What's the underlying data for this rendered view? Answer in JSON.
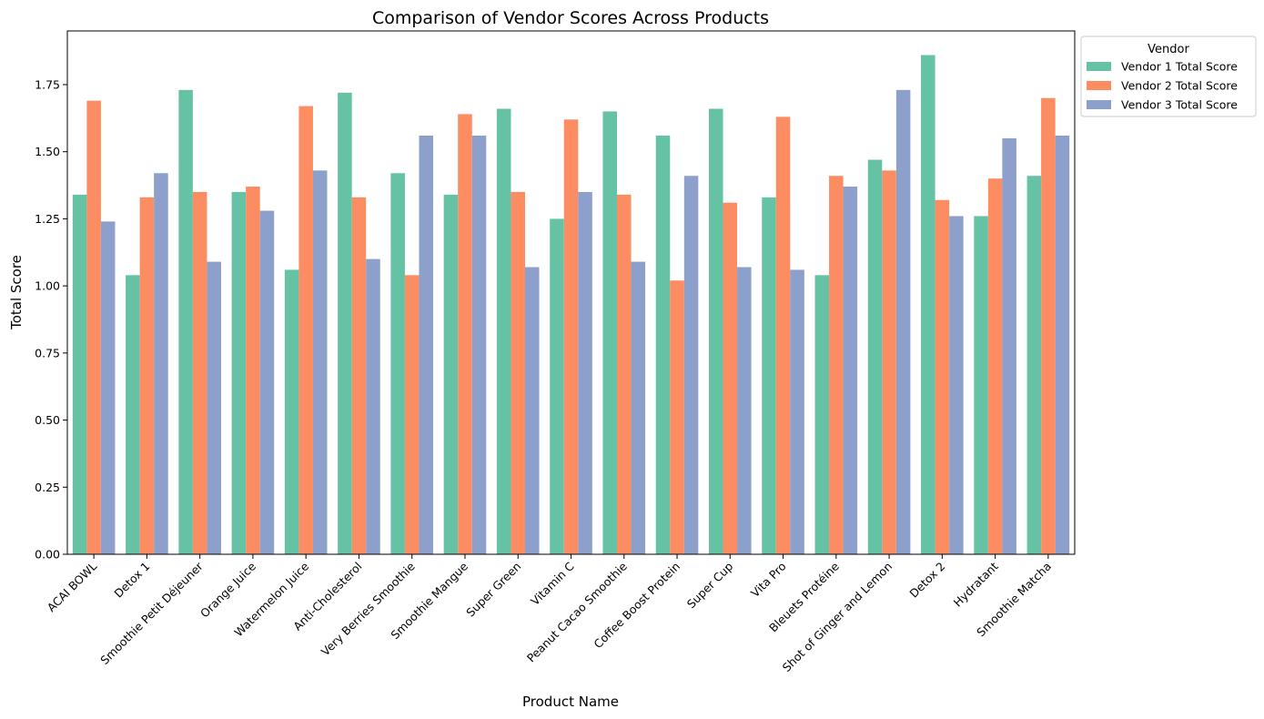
{
  "chart_data": {
    "type": "bar",
    "title": "Comparison of Vendor Scores Across Products",
    "xlabel": "Product Name",
    "ylabel": "Total Score",
    "ylim": [
      0,
      1.95
    ],
    "yticks": [
      "0.00",
      "0.25",
      "0.50",
      "0.75",
      "1.00",
      "1.25",
      "1.50",
      "1.75"
    ],
    "legend": {
      "title": "Vendor",
      "placement": "outside top-right"
    },
    "grid": false,
    "categories": [
      "ACAI BOWL",
      "Detox 1",
      "Smoothie Petit Déjeuner",
      "Orange Juice",
      "Watermelon Juice",
      "Anti-Cholesterol",
      "Very Berries Smoothie",
      "Smoothie Mangue",
      "Super Green",
      "Vitamin C",
      "Peanut Cacao Smoothie",
      "Coffee Boost Protein",
      "Super Cup",
      "Vita Pro",
      "Bleuets Protéine",
      "Shot of Ginger and Lemon",
      "Detox 2",
      "Hydratant",
      "Smoothie Matcha"
    ],
    "series": [
      {
        "name": "Vendor 1 Total Score",
        "color": "#66c2a5",
        "values": [
          1.34,
          1.04,
          1.73,
          1.35,
          1.06,
          1.72,
          1.42,
          1.34,
          1.66,
          1.25,
          1.65,
          1.56,
          1.66,
          1.33,
          1.04,
          1.47,
          1.86,
          1.26,
          1.41
        ]
      },
      {
        "name": "Vendor 2 Total Score",
        "color": "#fc8d62",
        "values": [
          1.69,
          1.33,
          1.35,
          1.37,
          1.67,
          1.33,
          1.04,
          1.64,
          1.35,
          1.62,
          1.34,
          1.02,
          1.31,
          1.63,
          1.41,
          1.43,
          1.32,
          1.4,
          1.7
        ]
      },
      {
        "name": "Vendor 3 Total Score",
        "color": "#8da0cb",
        "values": [
          1.24,
          1.42,
          1.09,
          1.28,
          1.43,
          1.1,
          1.56,
          1.56,
          1.07,
          1.35,
          1.09,
          1.41,
          1.07,
          1.06,
          1.37,
          1.73,
          1.26,
          1.55,
          1.56
        ]
      }
    ]
  }
}
